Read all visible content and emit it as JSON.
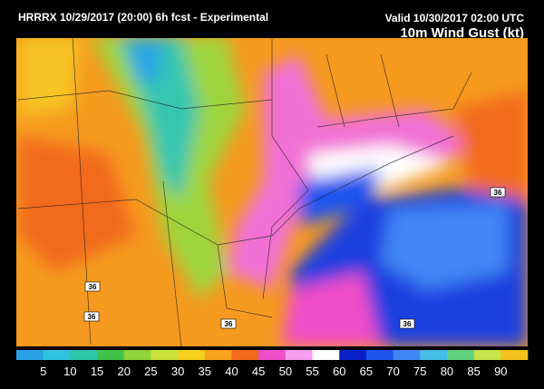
{
  "header": {
    "model": "HRRRX 10/29/2017 (20:00) 6h fcst - Experimental",
    "valid": "Valid 10/30/2017 02:00 UTC",
    "field": "10m Wind Gust (kt)"
  },
  "map": {
    "route_labels": [
      "36",
      "36",
      "36",
      "36",
      "36"
    ]
  },
  "colorbar": {
    "labels": [
      5,
      10,
      15,
      20,
      25,
      30,
      35,
      40,
      45,
      50,
      55,
      60,
      65,
      70,
      75,
      80,
      85,
      90
    ],
    "colors": [
      "#27a2e6",
      "#2ec4e0",
      "#2cc7a8",
      "#3fc24a",
      "#8fd43a",
      "#c9e23a",
      "#f4d11a",
      "#f7a21b",
      "#f36a1c",
      "#f14ec9",
      "#f79ef0",
      "#ffffff",
      "#0a1fc8",
      "#1f55f0",
      "#3f86f5",
      "#45bde8",
      "#5dd17d",
      "#c7e44a",
      "#f4c21f"
    ]
  }
}
